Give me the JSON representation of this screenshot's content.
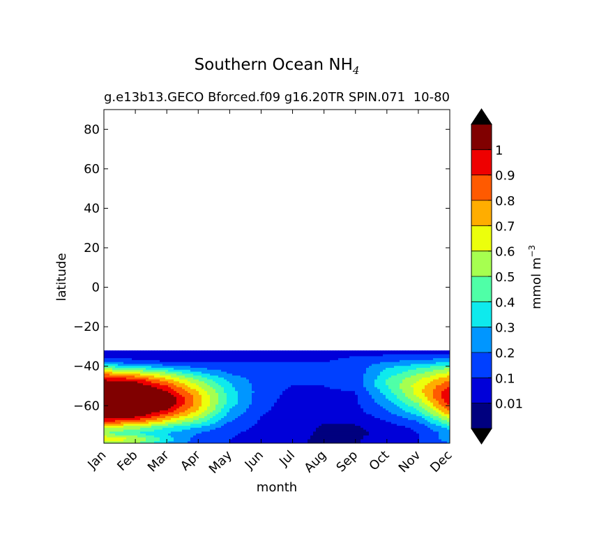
{
  "chart_data": {
    "type": "heatmap",
    "title": "Southern Ocean NH",
    "title_subscript": "4",
    "subtitle": "g.e13b13.GECO Bforced.f09 g16.20TR SPIN.071",
    "subtitle_overlap": "10-80",
    "xlabel": "month",
    "ylabel": "latitude",
    "x_categories": [
      "Jan",
      "Feb",
      "Mar",
      "Apr",
      "May",
      "Jun",
      "Jul",
      "Aug",
      "Sep",
      "Oct",
      "Nov",
      "Dec"
    ],
    "y_ticks": [
      "80",
      "60",
      "40",
      "20",
      "0",
      "−20",
      "−40",
      "−60"
    ],
    "y_tick_values": [
      80,
      60,
      40,
      20,
      0,
      -20,
      -40,
      -60
    ],
    "ylim": [
      -79,
      90
    ],
    "data_lat_range": [
      -79,
      -32
    ],
    "colorbar": {
      "label": "mmol m",
      "label_superscript": "−3",
      "tick_labels": [
        "0.01",
        "0.1",
        "0.2",
        "0.3",
        "0.4",
        "0.5",
        "0.6",
        "0.7",
        "0.8",
        "0.9",
        "1"
      ],
      "levels": [
        0.01,
        0.1,
        0.2,
        0.3,
        0.4,
        0.5,
        0.6,
        0.7,
        0.8,
        0.9,
        1.0
      ],
      "extend": "both",
      "colors": [
        "#00007f",
        "#0000d9",
        "#0040ff",
        "#0096ff",
        "#0eeaed",
        "#4fffa7",
        "#a6ff50",
        "#ecff0c",
        "#ffad00",
        "#ff5a00",
        "#ee0000",
        "#800000",
        "#000000"
      ],
      "under_color": "#000000",
      "over_color": "#000000"
    },
    "approx_field_by_month_rows": {
      "lats": [
        -32,
        -35,
        -38,
        -41,
        -44,
        -47,
        -50,
        -53,
        -56,
        -59,
        -62,
        -65,
        -68,
        -71,
        -74,
        -77,
        -79
      ],
      "values": [
        [
          0.02,
          0.05,
          0.2,
          0.5,
          0.8,
          1.0,
          1.1,
          1.2,
          1.2,
          1.2,
          1.2,
          1.1,
          0.9,
          0.6,
          0.5,
          0.7,
          0.5
        ],
        [
          0.02,
          0.05,
          0.15,
          0.4,
          0.7,
          0.95,
          1.1,
          1.2,
          1.2,
          1.2,
          1.2,
          1.05,
          0.85,
          0.55,
          0.4,
          0.6,
          0.5
        ],
        [
          0.02,
          0.05,
          0.1,
          0.3,
          0.55,
          0.75,
          0.9,
          1.0,
          1.1,
          1.1,
          1.0,
          0.85,
          0.65,
          0.4,
          0.3,
          0.35,
          0.3
        ],
        [
          0.02,
          0.05,
          0.1,
          0.2,
          0.35,
          0.5,
          0.6,
          0.7,
          0.75,
          0.75,
          0.7,
          0.6,
          0.45,
          0.3,
          0.2,
          0.15,
          0.15
        ],
        [
          0.02,
          0.06,
          0.1,
          0.15,
          0.2,
          0.28,
          0.32,
          0.35,
          0.36,
          0.35,
          0.3,
          0.25,
          0.2,
          0.15,
          0.12,
          0.1,
          0.1
        ],
        [
          0.02,
          0.06,
          0.1,
          0.12,
          0.13,
          0.14,
          0.15,
          0.15,
          0.14,
          0.13,
          0.12,
          0.1,
          0.09,
          0.08,
          0.06,
          0.05,
          0.05
        ],
        [
          0.02,
          0.06,
          0.1,
          0.12,
          0.12,
          0.12,
          0.1,
          0.08,
          0.07,
          0.06,
          0.05,
          0.05,
          0.05,
          0.04,
          0.03,
          0.02,
          0.02
        ],
        [
          0.02,
          0.06,
          0.1,
          0.12,
          0.12,
          0.12,
          0.1,
          0.09,
          0.08,
          0.07,
          0.06,
          0.04,
          0.02,
          0.0,
          0.0,
          0.0,
          0.0
        ],
        [
          0.02,
          0.1,
          0.15,
          0.15,
          0.14,
          0.13,
          0.12,
          0.1,
          0.09,
          0.08,
          0.07,
          0.05,
          0.02,
          0.0,
          0.0,
          0.0,
          0.0
        ],
        [
          0.02,
          0.12,
          0.2,
          0.3,
          0.35,
          0.4,
          0.4,
          0.35,
          0.3,
          0.25,
          0.2,
          0.15,
          0.1,
          0.05,
          0.02,
          0.05,
          0.05
        ],
        [
          0.02,
          0.12,
          0.25,
          0.4,
          0.5,
          0.6,
          0.65,
          0.65,
          0.6,
          0.5,
          0.4,
          0.3,
          0.2,
          0.12,
          0.1,
          0.1,
          0.1
        ],
        [
          0.02,
          0.15,
          0.3,
          0.5,
          0.65,
          0.8,
          0.9,
          1.0,
          1.0,
          0.95,
          0.85,
          0.7,
          0.5,
          0.35,
          0.25,
          0.25,
          0.2
        ]
      ]
    }
  }
}
